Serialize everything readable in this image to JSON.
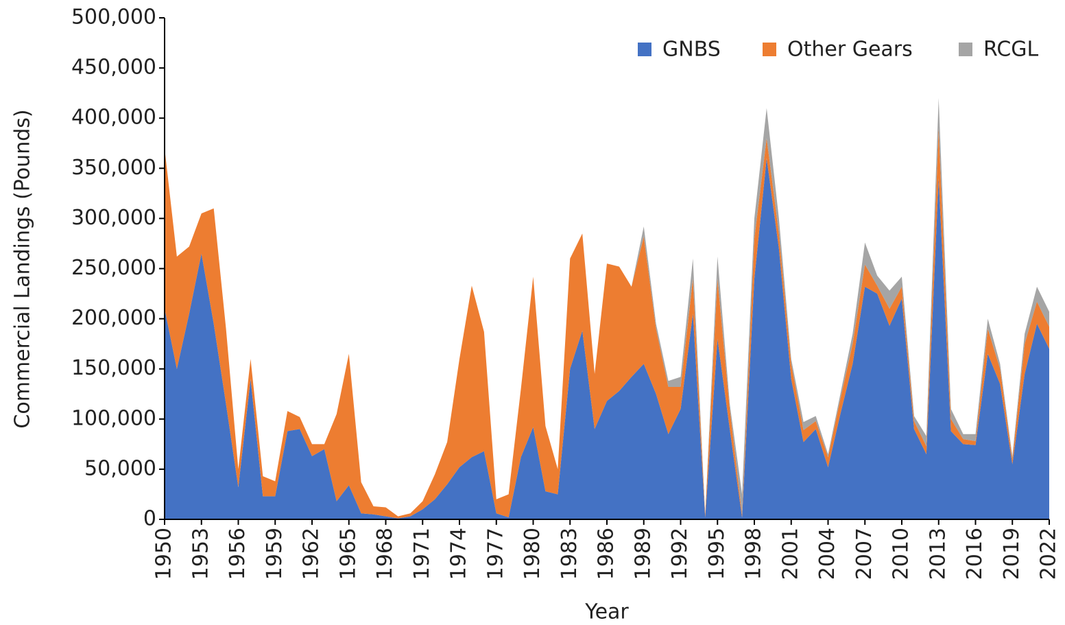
{
  "chart_data": {
    "type": "stacked_area",
    "xlabel": "Year",
    "ylabel": "Commercial Landings (Pounds)",
    "x": [
      1950,
      1951,
      1952,
      1953,
      1954,
      1955,
      1956,
      1957,
      1958,
      1959,
      1960,
      1961,
      1962,
      1963,
      1964,
      1965,
      1966,
      1967,
      1968,
      1969,
      1970,
      1971,
      1972,
      1973,
      1974,
      1975,
      1976,
      1977,
      1978,
      1979,
      1980,
      1981,
      1982,
      1983,
      1984,
      1985,
      1986,
      1987,
      1988,
      1989,
      1990,
      1991,
      1992,
      1993,
      1994,
      1995,
      1996,
      1997,
      1998,
      1999,
      2000,
      2001,
      2002,
      2003,
      2004,
      2005,
      2006,
      2007,
      2008,
      2009,
      2010,
      2011,
      2012,
      2013,
      2014,
      2015,
      2016,
      2017,
      2018,
      2019,
      2020,
      2021,
      2022
    ],
    "series": [
      {
        "name": "GNBS",
        "color": "#4472c4",
        "values": [
          210000,
          150000,
          205000,
          265000,
          195000,
          115000,
          32000,
          140000,
          23000,
          23000,
          88000,
          90000,
          63000,
          70000,
          18000,
          34000,
          6000,
          5000,
          3000,
          1000,
          3000,
          10000,
          20000,
          35000,
          52000,
          62000,
          68000,
          6000,
          2000,
          62000,
          92000,
          28000,
          25000,
          150000,
          188000,
          90000,
          118000,
          128000,
          142000,
          155000,
          125000,
          85000,
          110000,
          205000,
          2000,
          180000,
          90000,
          2000,
          240000,
          360000,
          270000,
          140000,
          77000,
          90000,
          52000,
          105000,
          155000,
          232000,
          225000,
          193000,
          220000,
          90000,
          65000,
          340000,
          88000,
          75000,
          74000,
          165000,
          135000,
          55000,
          145000,
          195000,
          170000
        ]
      },
      {
        "name": "Other Gears",
        "color": "#ed7d31",
        "values": [
          160000,
          112000,
          67000,
          40000,
          115000,
          75000,
          18000,
          20000,
          20000,
          15000,
          20000,
          12000,
          12000,
          5000,
          87000,
          131000,
          31000,
          8000,
          9000,
          2000,
          3000,
          8000,
          25000,
          42000,
          108000,
          171000,
          119000,
          14000,
          23000,
          68000,
          150000,
          65000,
          25000,
          110000,
          97000,
          55000,
          137000,
          124000,
          90000,
          127000,
          65000,
          47000,
          22000,
          35000,
          3000,
          60000,
          20000,
          3000,
          40000,
          20000,
          15000,
          15000,
          12000,
          8000,
          10000,
          15000,
          20000,
          22000,
          8000,
          17000,
          12000,
          8000,
          8000,
          50000,
          12000,
          5000,
          4000,
          25000,
          15000,
          5000,
          30000,
          22000,
          22000
        ]
      },
      {
        "name": "RCGL",
        "color": "#a5a5a5",
        "values": [
          0,
          0,
          0,
          0,
          0,
          0,
          0,
          0,
          0,
          0,
          0,
          0,
          0,
          0,
          0,
          0,
          0,
          0,
          0,
          0,
          0,
          0,
          0,
          0,
          0,
          0,
          0,
          0,
          0,
          0,
          0,
          0,
          0,
          0,
          0,
          0,
          0,
          0,
          0,
          10000,
          5000,
          6000,
          10000,
          20000,
          0,
          22000,
          5000,
          20000,
          20000,
          30000,
          15000,
          5000,
          8000,
          5000,
          3000,
          5000,
          10000,
          22000,
          10000,
          18000,
          10000,
          5000,
          10000,
          30000,
          10000,
          5000,
          7000,
          10000,
          5000,
          3000,
          10000,
          15000,
          15000
        ]
      }
    ],
    "xlim": [
      1950,
      2022
    ],
    "xticks": [
      1950,
      1953,
      1956,
      1959,
      1962,
      1965,
      1968,
      1971,
      1974,
      1977,
      1980,
      1983,
      1986,
      1989,
      1992,
      1995,
      1998,
      2001,
      2004,
      2007,
      2010,
      2013,
      2016,
      2019,
      2022
    ],
    "ylim": [
      0,
      500000
    ],
    "yticks": [
      0,
      {
        "value": 50000,
        "label": "50,000"
      },
      {
        "value": 100000,
        "label": "100,000"
      },
      {
        "value": 150000,
        "label": "150,000"
      },
      {
        "value": 200000,
        "label": "200,000"
      },
      {
        "value": 250000,
        "label": "250,000"
      },
      {
        "value": 300000,
        "label": "300,000"
      },
      {
        "value": 350000,
        "label": "350,000"
      },
      {
        "value": 400000,
        "label": "400,000"
      },
      {
        "value": 450000,
        "label": "450,000"
      },
      {
        "value": 500000,
        "label": "500,000"
      }
    ],
    "legend": "upper right"
  }
}
